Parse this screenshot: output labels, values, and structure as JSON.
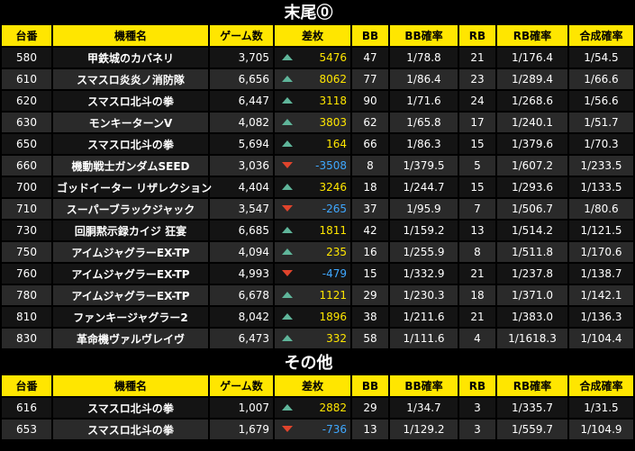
{
  "colors": {
    "header_bg": "#ffe600",
    "positive": "#ffe600",
    "negative": "#3fa8ff",
    "arrow_up": "#5fb59a",
    "arrow_down": "#e0442c"
  },
  "columns": [
    "台番",
    "機種名",
    "ゲーム数",
    "差枚",
    "BB",
    "BB確率",
    "RB",
    "RB確率",
    "合成確率"
  ],
  "sections": [
    {
      "title": "末尾⓪",
      "rows": [
        {
          "no": "580",
          "name": "甲鉄城のカバネリ",
          "games": "3,705",
          "diff": "5476",
          "dir": "up",
          "bb": "47",
          "bbp": "1/78.8",
          "rb": "21",
          "rbp": "1/176.4",
          "comb": "1/54.5"
        },
        {
          "no": "610",
          "name": "スマスロ炎炎ノ消防隊",
          "games": "6,656",
          "diff": "8062",
          "dir": "up",
          "bb": "77",
          "bbp": "1/86.4",
          "rb": "23",
          "rbp": "1/289.4",
          "comb": "1/66.6"
        },
        {
          "no": "620",
          "name": "スマスロ北斗の拳",
          "games": "6,447",
          "diff": "3118",
          "dir": "up",
          "bb": "90",
          "bbp": "1/71.6",
          "rb": "24",
          "rbp": "1/268.6",
          "comb": "1/56.6"
        },
        {
          "no": "630",
          "name": "モンキーターンV",
          "games": "4,082",
          "diff": "3803",
          "dir": "up",
          "bb": "62",
          "bbp": "1/65.8",
          "rb": "17",
          "rbp": "1/240.1",
          "comb": "1/51.7"
        },
        {
          "no": "650",
          "name": "スマスロ北斗の拳",
          "games": "5,694",
          "diff": "164",
          "dir": "up",
          "bb": "66",
          "bbp": "1/86.3",
          "rb": "15",
          "rbp": "1/379.6",
          "comb": "1/70.3"
        },
        {
          "no": "660",
          "name": "機動戦士ガンダムSEED",
          "games": "3,036",
          "diff": "-3508",
          "dir": "down",
          "bb": "8",
          "bbp": "1/379.5",
          "rb": "5",
          "rbp": "1/607.2",
          "comb": "1/233.5"
        },
        {
          "no": "700",
          "name": "ゴッドイーター リザレクション",
          "games": "4,404",
          "diff": "3246",
          "dir": "up",
          "bb": "18",
          "bbp": "1/244.7",
          "rb": "15",
          "rbp": "1/293.6",
          "comb": "1/133.5"
        },
        {
          "no": "710",
          "name": "スーパーブラックジャック",
          "games": "3,547",
          "diff": "-265",
          "dir": "down",
          "bb": "37",
          "bbp": "1/95.9",
          "rb": "7",
          "rbp": "1/506.7",
          "comb": "1/80.6"
        },
        {
          "no": "730",
          "name": "回胴黙示録カイジ 狂宴",
          "games": "6,685",
          "diff": "1811",
          "dir": "up",
          "bb": "42",
          "bbp": "1/159.2",
          "rb": "13",
          "rbp": "1/514.2",
          "comb": "1/121.5"
        },
        {
          "no": "750",
          "name": "アイムジャグラーEX-TP",
          "games": "4,094",
          "diff": "235",
          "dir": "up",
          "bb": "16",
          "bbp": "1/255.9",
          "rb": "8",
          "rbp": "1/511.8",
          "comb": "1/170.6"
        },
        {
          "no": "760",
          "name": "アイムジャグラーEX-TP",
          "games": "4,993",
          "diff": "-479",
          "dir": "down",
          "bb": "15",
          "bbp": "1/332.9",
          "rb": "21",
          "rbp": "1/237.8",
          "comb": "1/138.7"
        },
        {
          "no": "780",
          "name": "アイムジャグラーEX-TP",
          "games": "6,678",
          "diff": "1121",
          "dir": "up",
          "bb": "29",
          "bbp": "1/230.3",
          "rb": "18",
          "rbp": "1/371.0",
          "comb": "1/142.1"
        },
        {
          "no": "810",
          "name": "ファンキージャグラー2",
          "games": "8,042",
          "diff": "1896",
          "dir": "up",
          "bb": "38",
          "bbp": "1/211.6",
          "rb": "21",
          "rbp": "1/383.0",
          "comb": "1/136.3"
        },
        {
          "no": "830",
          "name": "革命機ヴァルヴレイヴ",
          "games": "6,473",
          "diff": "332",
          "dir": "up",
          "bb": "58",
          "bbp": "1/111.6",
          "rb": "4",
          "rbp": "1/1618.3",
          "comb": "1/104.4"
        }
      ]
    },
    {
      "title": "その他",
      "rows": [
        {
          "no": "616",
          "name": "スマスロ北斗の拳",
          "games": "1,007",
          "diff": "2882",
          "dir": "up",
          "bb": "29",
          "bbp": "1/34.7",
          "rb": "3",
          "rbp": "1/335.7",
          "comb": "1/31.5"
        },
        {
          "no": "653",
          "name": "スマスロ北斗の拳",
          "games": "1,679",
          "diff": "-736",
          "dir": "down",
          "bb": "13",
          "bbp": "1/129.2",
          "rb": "3",
          "rbp": "1/559.7",
          "comb": "1/104.9"
        }
      ]
    }
  ]
}
